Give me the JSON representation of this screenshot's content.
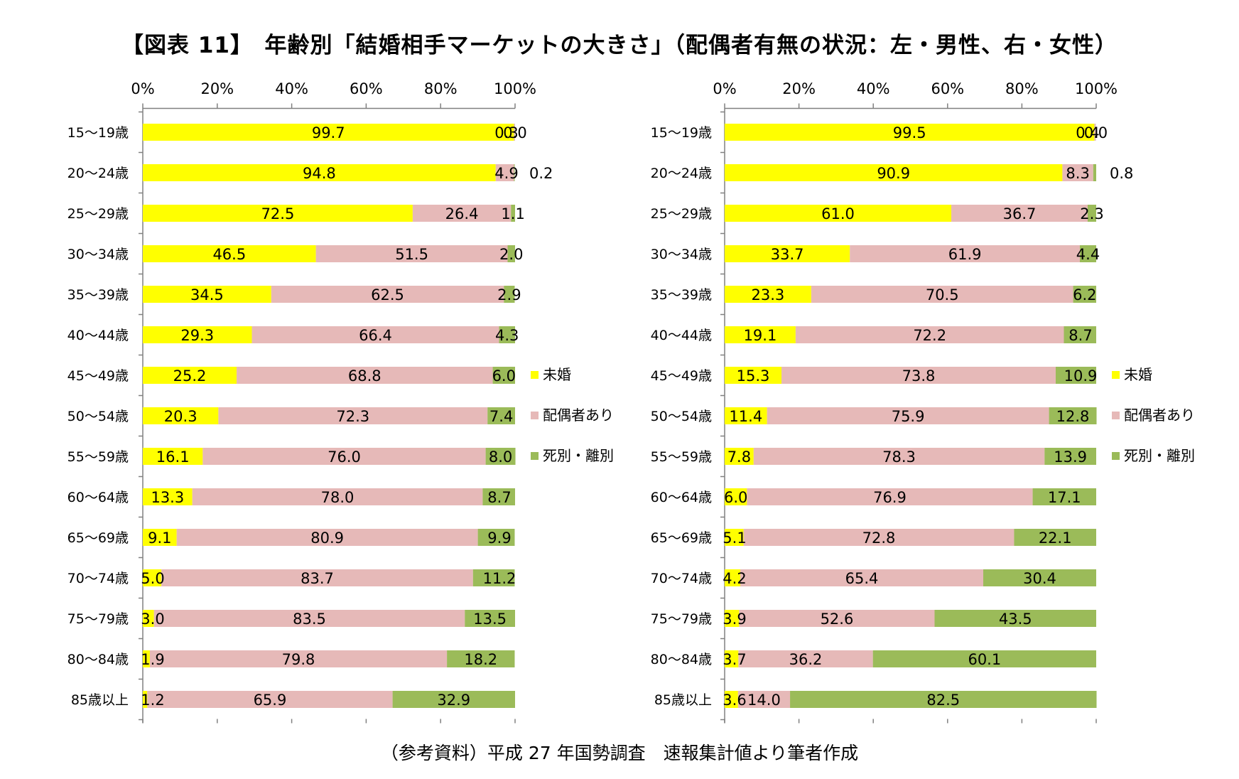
{
  "title": "【図表 11】　年齢別「結婚相手マーケットの大きさ」（配偶者有無の状況：左・男性、右・女性）",
  "footer": "（参考資料）平成 27 年国勢調査　速報集計値より筆者作成",
  "colors": {
    "unmarried": "#ffff00",
    "married": "#e6b9b8",
    "widowed_divorced": "#9bbb59",
    "axis": "#808080"
  },
  "chart_data": [
    {
      "type": "bar",
      "orientation": "horizontal-stacked-100",
      "title": "左・男性",
      "xlim": [
        0,
        100
      ],
      "xticks": [
        "0%",
        "20%",
        "40%",
        "60%",
        "80%",
        "100%"
      ],
      "categories": [
        "15〜19歳",
        "20〜24歳",
        "25〜29歳",
        "30〜34歳",
        "35〜39歳",
        "40〜44歳",
        "45〜49歳",
        "50〜54歳",
        "55〜59歳",
        "60〜64歳",
        "65〜69歳",
        "70〜74歳",
        "75〜79歳",
        "80〜84歳",
        "85歳以上"
      ],
      "series": [
        {
          "name": "未婚",
          "values": [
            99.7,
            94.8,
            72.5,
            46.5,
            34.5,
            29.3,
            25.2,
            20.3,
            16.1,
            13.3,
            9.1,
            5.0,
            3.0,
            1.9,
            1.2
          ]
        },
        {
          "name": "配偶者あり",
          "values": [
            0.3,
            4.9,
            26.4,
            51.5,
            62.5,
            66.4,
            68.8,
            72.3,
            76.0,
            78.0,
            80.9,
            83.7,
            83.5,
            79.8,
            65.9
          ]
        },
        {
          "name": "死別・離別",
          "values": [
            0.0,
            0.2,
            1.1,
            2.0,
            2.9,
            4.3,
            6.0,
            7.4,
            8.0,
            8.7,
            9.9,
            11.2,
            13.5,
            18.2,
            32.9
          ]
        }
      ],
      "labels": {
        "unmarried": [
          "99.7",
          "94.8",
          "72.5",
          "46.5",
          "34.5",
          "29.3",
          "25.2",
          "20.3",
          "16.1",
          "13.3",
          "9.1",
          "5.0",
          "3.0",
          "1.9",
          "1.2"
        ],
        "married": [
          "0.3",
          "4.9",
          "26.4",
          "51.5",
          "62.5",
          "66.4",
          "68.8",
          "72.3",
          "76.0",
          "78.0",
          "80.9",
          "83.7",
          "83.5",
          "79.8",
          "65.9"
        ],
        "widowed_divorced": [
          "0.0",
          "0.2",
          "1.1",
          "2.0",
          "2.9",
          "4.3",
          "6.0",
          "7.4",
          "8.0",
          "8.7",
          "9.9",
          "11.2",
          "13.5",
          "18.2",
          "32.9"
        ]
      },
      "legend": [
        "未婚",
        "配偶者あり",
        "死別・離別"
      ]
    },
    {
      "type": "bar",
      "orientation": "horizontal-stacked-100",
      "title": "右・女性",
      "xlim": [
        0,
        100
      ],
      "xticks": [
        "0%",
        "20%",
        "40%",
        "60%",
        "80%",
        "100%"
      ],
      "categories": [
        "15〜19歳",
        "20〜24歳",
        "25〜29歳",
        "30〜34歳",
        "35〜39歳",
        "40〜44歳",
        "45〜49歳",
        "50〜54歳",
        "55〜59歳",
        "60〜64歳",
        "65〜69歳",
        "70〜74歳",
        "75〜79歳",
        "80〜84歳",
        "85歳以上"
      ],
      "series": [
        {
          "name": "未婚",
          "values": [
            99.5,
            90.9,
            61.0,
            33.7,
            23.3,
            19.1,
            15.3,
            11.4,
            7.8,
            6.0,
            5.1,
            4.2,
            3.9,
            3.7,
            3.6
          ]
        },
        {
          "name": "配偶者あり",
          "values": [
            0.4,
            8.3,
            36.7,
            61.9,
            70.5,
            72.2,
            73.8,
            75.9,
            78.3,
            76.9,
            72.8,
            65.4,
            52.6,
            36.2,
            14.0
          ]
        },
        {
          "name": "死別・離別",
          "values": [
            0.0,
            0.8,
            2.3,
            4.4,
            6.2,
            8.7,
            10.9,
            12.8,
            13.9,
            17.1,
            22.1,
            30.4,
            43.5,
            60.1,
            82.5
          ]
        }
      ],
      "labels": {
        "unmarried": [
          "99.5",
          "90.9",
          "61.0",
          "33.7",
          "23.3",
          "19.1",
          "15.3",
          "11.4",
          "7.8",
          "6.0",
          "5.1",
          "4.2",
          "3.9",
          "3.7",
          "3.6"
        ],
        "married": [
          "0.4",
          "8.3",
          "36.7",
          "61.9",
          "70.5",
          "72.2",
          "73.8",
          "75.9",
          "78.3",
          "76.9",
          "72.8",
          "65.4",
          "52.6",
          "36.2",
          "14.0"
        ],
        "widowed_divorced": [
          "0.0",
          "0.8",
          "2.3",
          "4.4",
          "6.2",
          "8.7",
          "10.9",
          "12.8",
          "13.9",
          "17.1",
          "22.1",
          "30.4",
          "43.5",
          "60.1",
          "82.5"
        ]
      },
      "legend": [
        "未婚",
        "配偶者あり",
        "死別・離別"
      ]
    }
  ]
}
